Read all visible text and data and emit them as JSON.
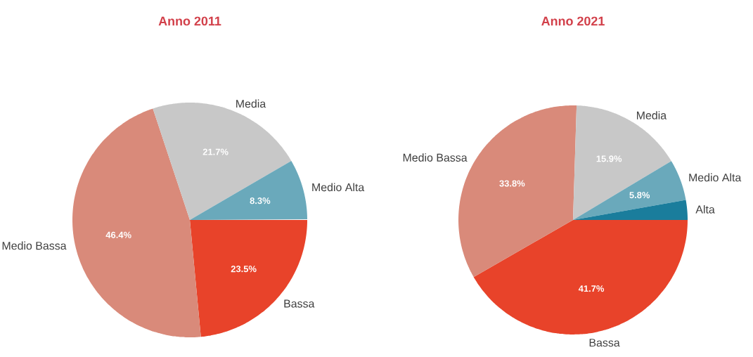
{
  "chart_data": [
    {
      "type": "pie",
      "title": "Anno 2011",
      "categories": [
        "Bassa",
        "Medio Bassa",
        "Media",
        "Medio Alta"
      ],
      "values": [
        23.5,
        46.4,
        21.7,
        8.3
      ],
      "value_labels": [
        "23.5%",
        "46.4%",
        "21.7%",
        "8.3%"
      ],
      "colors": [
        "#e8432a",
        "#d98a7a",
        "#c8c8c8",
        "#6aa9bb"
      ]
    },
    {
      "type": "pie",
      "title": "Anno 2021",
      "categories": [
        "Bassa",
        "Medio Bassa",
        "Media",
        "Medio Alta",
        "Alta"
      ],
      "values": [
        41.7,
        33.8,
        15.9,
        5.8,
        2.8
      ],
      "value_labels": [
        "41.7%",
        "33.8%",
        "15.9%",
        "5.8%",
        null
      ],
      "colors": [
        "#e8432a",
        "#d98a7a",
        "#c8c8c8",
        "#6aa9bb",
        "#1a7d9c"
      ]
    }
  ]
}
